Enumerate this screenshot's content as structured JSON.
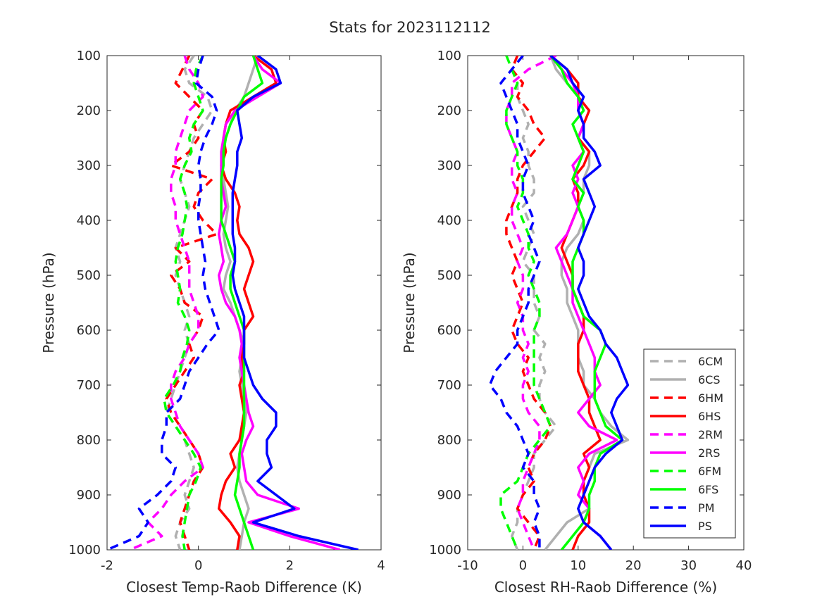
{
  "figure_title": "Stats for 2023112112",
  "colors": {
    "6CM": "#b0b0b0",
    "6CS": "#b0b0b0",
    "6HM": "#ff0000",
    "6HS": "#ff0000",
    "2RM": "#ff00ff",
    "2RS": "#ff00ff",
    "6FM": "#00ff00",
    "6FS": "#00ff00",
    "PM": "#0000ff",
    "PS": "#0000ff"
  },
  "chart_data": [
    {
      "type": "line",
      "xlabel": "Closest Temp-Raob Difference (K)",
      "ylabel": "Pressure (hPa)",
      "xlim": [
        -2,
        4
      ],
      "ylim": [
        100,
        1000
      ],
      "y_reversed": true,
      "xticks": [
        "-2",
        "0",
        "2",
        "4"
      ],
      "yticks": [
        "100",
        "200",
        "300",
        "400",
        "500",
        "600",
        "700",
        "800",
        "900",
        "1000"
      ],
      "pressure": [
        100,
        125,
        150,
        175,
        200,
        225,
        250,
        275,
        300,
        325,
        350,
        375,
        400,
        425,
        450,
        475,
        500,
        525,
        550,
        575,
        600,
        625,
        650,
        675,
        700,
        725,
        750,
        775,
        800,
        825,
        850,
        875,
        900,
        925,
        950,
        975,
        1000
      ],
      "series": [
        {
          "name": "6CM",
          "style": "dashed",
          "values": [
            -0.1,
            -0.3,
            -0.2,
            0.2,
            0.3,
            0.1,
            -0.1,
            -0.2,
            -0.3,
            -0.4,
            -0.3,
            -0.2,
            -0.3,
            -0.4,
            -0.5,
            -0.4,
            -0.5,
            -0.4,
            -0.3,
            -0.2,
            -0.3,
            -0.2,
            -0.3,
            -0.4,
            -0.5,
            -0.6,
            -0.7,
            -0.5,
            -0.3,
            -0.2,
            -0.1,
            -0.2,
            -0.3,
            -0.2,
            -0.4,
            -0.5,
            -0.4
          ]
        },
        {
          "name": "6CS",
          "style": "solid",
          "values": [
            1.3,
            1.2,
            1.1,
            1.0,
            0.8,
            0.7,
            0.6,
            0.55,
            0.5,
            0.55,
            0.6,
            0.65,
            0.6,
            0.55,
            0.6,
            0.7,
            0.6,
            0.55,
            0.7,
            0.8,
            0.9,
            1.0,
            0.95,
            0.9,
            0.95,
            1.0,
            1.05,
            1.0,
            0.95,
            0.9,
            0.85,
            0.9,
            1.0,
            1.1,
            1.0,
            0.95,
            0.9
          ]
        },
        {
          "name": "6HM",
          "style": "dashed",
          "values": [
            -0.2,
            -0.35,
            -0.5,
            -0.2,
            0.1,
            -0.1,
            0.0,
            -0.2,
            -0.6,
            0.3,
            0.0,
            -0.1,
            0.1,
            0.4,
            -0.5,
            -0.2,
            -0.6,
            -0.4,
            -0.3,
            0.1,
            0.0,
            -0.2,
            -0.1,
            -0.3,
            -0.5,
            -0.7,
            -0.6,
            -0.4,
            -0.2,
            0.0,
            0.1,
            -0.1,
            -0.2,
            -0.3,
            -0.4,
            -0.3,
            -0.2
          ]
        },
        {
          "name": "6HS",
          "style": "solid",
          "values": [
            1.2,
            1.6,
            1.7,
            1.2,
            0.7,
            0.6,
            0.55,
            0.6,
            0.5,
            0.6,
            0.8,
            0.9,
            0.85,
            0.9,
            1.1,
            1.2,
            1.1,
            1.0,
            1.1,
            1.2,
            1.0,
            1.0,
            0.95,
            1.0,
            0.9,
            0.95,
            1.0,
            0.95,
            0.9,
            0.7,
            0.8,
            0.6,
            0.5,
            0.45,
            0.7,
            0.9,
            0.85
          ]
        },
        {
          "name": "2RM",
          "style": "dashed",
          "values": [
            -0.3,
            -0.2,
            0.0,
            0.1,
            -0.2,
            -0.3,
            -0.4,
            -0.5,
            -0.5,
            -0.6,
            -0.6,
            -0.5,
            -0.5,
            -0.4,
            -0.3,
            -0.2,
            -0.2,
            -0.2,
            -0.1,
            0.0,
            0.0,
            -0.2,
            -0.3,
            -0.5,
            -0.6,
            -0.6,
            -0.5,
            -0.4,
            -0.2,
            0.0,
            0.1,
            -0.3,
            -0.6,
            -0.8,
            -1.1,
            -0.8,
            -1.5
          ]
        },
        {
          "name": "2RS",
          "style": "solid",
          "values": [
            1.2,
            1.4,
            1.8,
            1.3,
            0.8,
            0.6,
            0.55,
            0.5,
            0.5,
            0.5,
            0.55,
            0.6,
            0.5,
            0.45,
            0.5,
            0.55,
            0.45,
            0.5,
            0.6,
            0.8,
            0.9,
            0.95,
            0.9,
            0.95,
            1.0,
            1.05,
            1.1,
            1.2,
            1.05,
            0.95,
            1.0,
            1.05,
            1.3,
            2.2,
            1.1,
            2.0,
            3.1
          ]
        },
        {
          "name": "6FM",
          "style": "dashed",
          "values": [
            0.1,
            -0.05,
            -0.1,
            0.0,
            0.1,
            -0.1,
            -0.2,
            -0.15,
            -0.3,
            -0.4,
            -0.3,
            -0.25,
            -0.3,
            -0.35,
            -0.45,
            -0.5,
            -0.45,
            -0.4,
            -0.45,
            -0.3,
            -0.2,
            -0.25,
            -0.35,
            -0.4,
            -0.55,
            -0.75,
            -0.7,
            -0.5,
            -0.3,
            -0.1,
            0.05,
            -0.05,
            -0.2,
            -0.25,
            -0.3,
            -0.35,
            -0.3
          ]
        },
        {
          "name": "6FS",
          "style": "solid",
          "values": [
            1.2,
            1.3,
            1.4,
            1.0,
            0.85,
            0.7,
            0.6,
            0.55,
            0.55,
            0.5,
            0.5,
            0.5,
            0.5,
            0.6,
            0.7,
            0.8,
            0.7,
            0.7,
            0.8,
            0.9,
            1.0,
            1.0,
            1.0,
            1.0,
            1.0,
            1.0,
            1.0,
            1.0,
            0.95,
            0.9,
            0.9,
            0.85,
            0.8,
            0.9,
            1.0,
            1.1,
            1.2
          ]
        },
        {
          "name": "PM",
          "style": "dashed",
          "values": [
            0.1,
            0.0,
            -0.05,
            0.3,
            0.4,
            0.3,
            0.15,
            0.05,
            0.0,
            0.05,
            0.05,
            0.0,
            0.0,
            0.05,
            0.1,
            0.15,
            0.1,
            0.15,
            0.25,
            0.35,
            0.45,
            0.2,
            0.0,
            -0.2,
            -0.3,
            -0.4,
            -0.7,
            -0.7,
            -0.8,
            -0.8,
            -0.5,
            -0.6,
            -0.9,
            -1.3,
            -1.1,
            -1.3,
            -2.0
          ]
        },
        {
          "name": "PS",
          "style": "solid",
          "values": [
            1.3,
            1.7,
            1.8,
            1.2,
            0.85,
            0.9,
            0.95,
            0.85,
            0.85,
            0.8,
            0.75,
            0.75,
            0.75,
            0.75,
            0.8,
            0.8,
            0.75,
            0.8,
            0.9,
            1.0,
            1.0,
            1.0,
            1.0,
            1.1,
            1.2,
            1.4,
            1.7,
            1.7,
            1.5,
            1.5,
            1.6,
            1.3,
            1.7,
            2.1,
            1.2,
            2.2,
            3.5
          ]
        }
      ]
    },
    {
      "type": "line",
      "xlabel": "Closest RH-Raob Difference (%)",
      "ylabel": "Pressure (hPa)",
      "xlim": [
        -10,
        40
      ],
      "ylim": [
        100,
        1000
      ],
      "y_reversed": true,
      "xticks": [
        "-10",
        "0",
        "10",
        "20",
        "30",
        "40"
      ],
      "yticks": [
        "100",
        "200",
        "300",
        "400",
        "500",
        "600",
        "700",
        "800",
        "900",
        "1000"
      ],
      "legend_position": "bottom-right",
      "pressure": [
        100,
        125,
        150,
        175,
        200,
        225,
        250,
        275,
        300,
        325,
        350,
        375,
        400,
        425,
        450,
        475,
        500,
        525,
        550,
        575,
        600,
        625,
        650,
        675,
        700,
        725,
        750,
        775,
        800,
        825,
        850,
        875,
        900,
        925,
        950,
        975,
        1000
      ],
      "series": [
        {
          "name": "6CM",
          "style": "dashed",
          "values": [
            -1,
            -2,
            -1,
            -1,
            0,
            1,
            0,
            1,
            1,
            2,
            2,
            0,
            1,
            2,
            1,
            0,
            2,
            2,
            2,
            3,
            2,
            4,
            3,
            4,
            3,
            3,
            4,
            6,
            4,
            2,
            2,
            1,
            0,
            -1,
            -1,
            -2,
            -1
          ]
        },
        {
          "name": "6CS",
          "style": "solid",
          "values": [
            5,
            6,
            8,
            10,
            10,
            11,
            10,
            12,
            12,
            11,
            11,
            10,
            11,
            10,
            8,
            7,
            7,
            8,
            8,
            9,
            10,
            10,
            10,
            11,
            11,
            13,
            14,
            16,
            19,
            13,
            12,
            11,
            11,
            12,
            8,
            6,
            4
          ]
        },
        {
          "name": "6HM",
          "style": "dashed",
          "values": [
            -1,
            -2,
            0,
            -1,
            1,
            2,
            4,
            2,
            0,
            -1,
            -1,
            -2,
            -3,
            -3,
            -2,
            -1,
            -2,
            -1,
            0,
            -1,
            -2,
            -1,
            1,
            0,
            1,
            2,
            4,
            5,
            4,
            2,
            1,
            2,
            0,
            -1,
            1,
            3,
            2
          ]
        },
        {
          "name": "6HS",
          "style": "solid",
          "values": [
            5,
            8,
            10,
            10,
            12,
            11,
            10,
            12,
            11,
            9,
            10,
            10,
            9,
            8,
            7,
            8,
            9,
            9,
            10,
            11,
            11,
            10,
            10,
            10,
            11,
            12,
            12,
            13,
            14,
            11,
            12,
            11,
            11,
            12,
            12,
            10,
            9
          ]
        },
        {
          "name": "2RM",
          "style": "dashed",
          "values": [
            6,
            1,
            -2,
            -2,
            -3,
            -3,
            -2,
            -1,
            -2,
            -2,
            -1,
            -2,
            -2,
            -1,
            0,
            -1,
            0,
            0,
            -1,
            0,
            0,
            1,
            0,
            1,
            0,
            0,
            1,
            3,
            3,
            2,
            1,
            0,
            0,
            -1,
            0,
            1,
            2
          ]
        },
        {
          "name": "2RS",
          "style": "solid",
          "values": [
            5,
            7,
            9,
            10,
            10,
            11,
            10,
            11,
            9,
            10,
            9,
            10,
            9,
            8,
            6,
            7,
            8,
            9,
            9,
            10,
            11,
            12,
            13,
            13,
            14,
            12,
            10,
            12,
            17,
            12,
            10,
            11,
            10,
            12,
            11,
            14,
            16
          ]
        },
        {
          "name": "6FM",
          "style": "dashed",
          "values": [
            -3,
            -2,
            -1,
            -2,
            -3,
            -3,
            -2,
            -1,
            -1,
            0,
            0,
            -1,
            0,
            1,
            1,
            2,
            1,
            2,
            3,
            3,
            2,
            2,
            2,
            2,
            2,
            3,
            4,
            5,
            3,
            1,
            0,
            -1,
            -4,
            -4,
            -3,
            -2,
            -1
          ]
        },
        {
          "name": "6FS",
          "style": "solid",
          "values": [
            5,
            7,
            8,
            10,
            11,
            9,
            10,
            11,
            10,
            9,
            11,
            10,
            11,
            11,
            10,
            9,
            9,
            9,
            10,
            11,
            14,
            15,
            14,
            13,
            13,
            13,
            14,
            15,
            18,
            14,
            13,
            13,
            12,
            12,
            11,
            9,
            7
          ]
        },
        {
          "name": "PM",
          "style": "dashed",
          "values": [
            0,
            -2,
            -4,
            -3,
            -2,
            -1,
            -1,
            0,
            1,
            0,
            0,
            1,
            2,
            1,
            2,
            3,
            2,
            1,
            1,
            0,
            -1,
            -1,
            -3,
            -5,
            -6,
            -4,
            -3,
            -1,
            0,
            1,
            0,
            2,
            2,
            3,
            2,
            3,
            3
          ]
        },
        {
          "name": "PS",
          "style": "solid",
          "values": [
            5,
            8,
            9,
            11,
            10,
            11,
            11,
            13,
            14,
            11,
            12,
            13,
            12,
            11,
            10,
            11,
            11,
            10,
            11,
            12,
            14,
            15,
            17,
            18,
            19,
            17,
            16,
            17,
            18,
            15,
            13,
            12,
            11,
            10,
            11,
            14,
            16
          ]
        }
      ]
    }
  ]
}
